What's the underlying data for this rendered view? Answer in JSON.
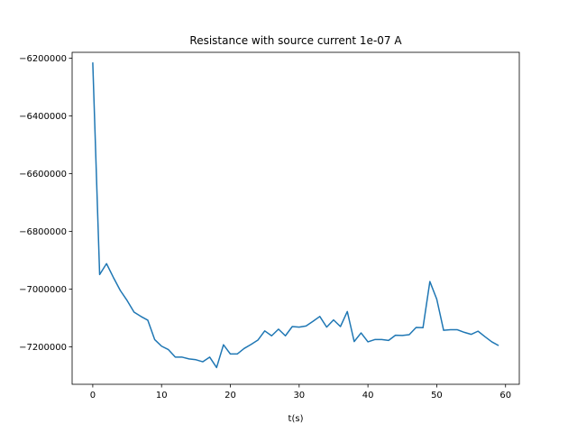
{
  "chart_data": {
    "type": "line",
    "title": "Resistance with source current 1e-07 A",
    "xlabel": "t(s)",
    "ylabel": "",
    "xlim": [
      -3,
      62
    ],
    "ylim": [
      -7330000,
      -6180000
    ],
    "x_ticks": [
      0,
      10,
      20,
      30,
      40,
      50,
      60
    ],
    "y_ticks": [
      -7200000,
      -7000000,
      -6800000,
      -6600000,
      -6400000,
      -6200000
    ],
    "x_tick_labels": [
      "0",
      "10",
      "20",
      "30",
      "40",
      "50",
      "60"
    ],
    "y_tick_labels": [
      "−7200000",
      "−7000000",
      "−6800000",
      "−6600000",
      "−6400000",
      "−6200000"
    ],
    "grid": false,
    "line_color": "#1f77b4",
    "series": [
      {
        "x": [
          0,
          1,
          2,
          3,
          4,
          5,
          6,
          7,
          8,
          9,
          10,
          11,
          12,
          13,
          14,
          15,
          16,
          17,
          18,
          19,
          20,
          21,
          22,
          23,
          24,
          25,
          26,
          27,
          28,
          29,
          30,
          31,
          32,
          33,
          34,
          35,
          36,
          37,
          38,
          39,
          40,
          41,
          42,
          43,
          44,
          45,
          46,
          47,
          48,
          49,
          50,
          51,
          52,
          53,
          54,
          55,
          56,
          57,
          58,
          59
        ],
        "values": [
          -6215000,
          -6950000,
          -6912000,
          -6960000,
          -7005000,
          -7040000,
          -7080000,
          -7095000,
          -7108000,
          -7175000,
          -7198000,
          -7210000,
          -7236000,
          -7236000,
          -7242000,
          -7245000,
          -7252000,
          -7236000,
          -7272000,
          -7193000,
          -7225000,
          -7225000,
          -7206000,
          -7192000,
          -7177000,
          -7145000,
          -7162000,
          -7139000,
          -7162000,
          -7130000,
          -7132000,
          -7128000,
          -7112000,
          -7095000,
          -7132000,
          -7107000,
          -7130000,
          -7078000,
          -7182000,
          -7152000,
          -7183000,
          -7175000,
          -7175000,
          -7178000,
          -7160000,
          -7161000,
          -7158000,
          -7133000,
          -7134000,
          -6974000,
          -7035000,
          -7143000,
          -7141000,
          -7141000,
          -7150000,
          -7157000,
          -7146000,
          -7165000,
          -7183000,
          -7196000
        ]
      }
    ]
  }
}
